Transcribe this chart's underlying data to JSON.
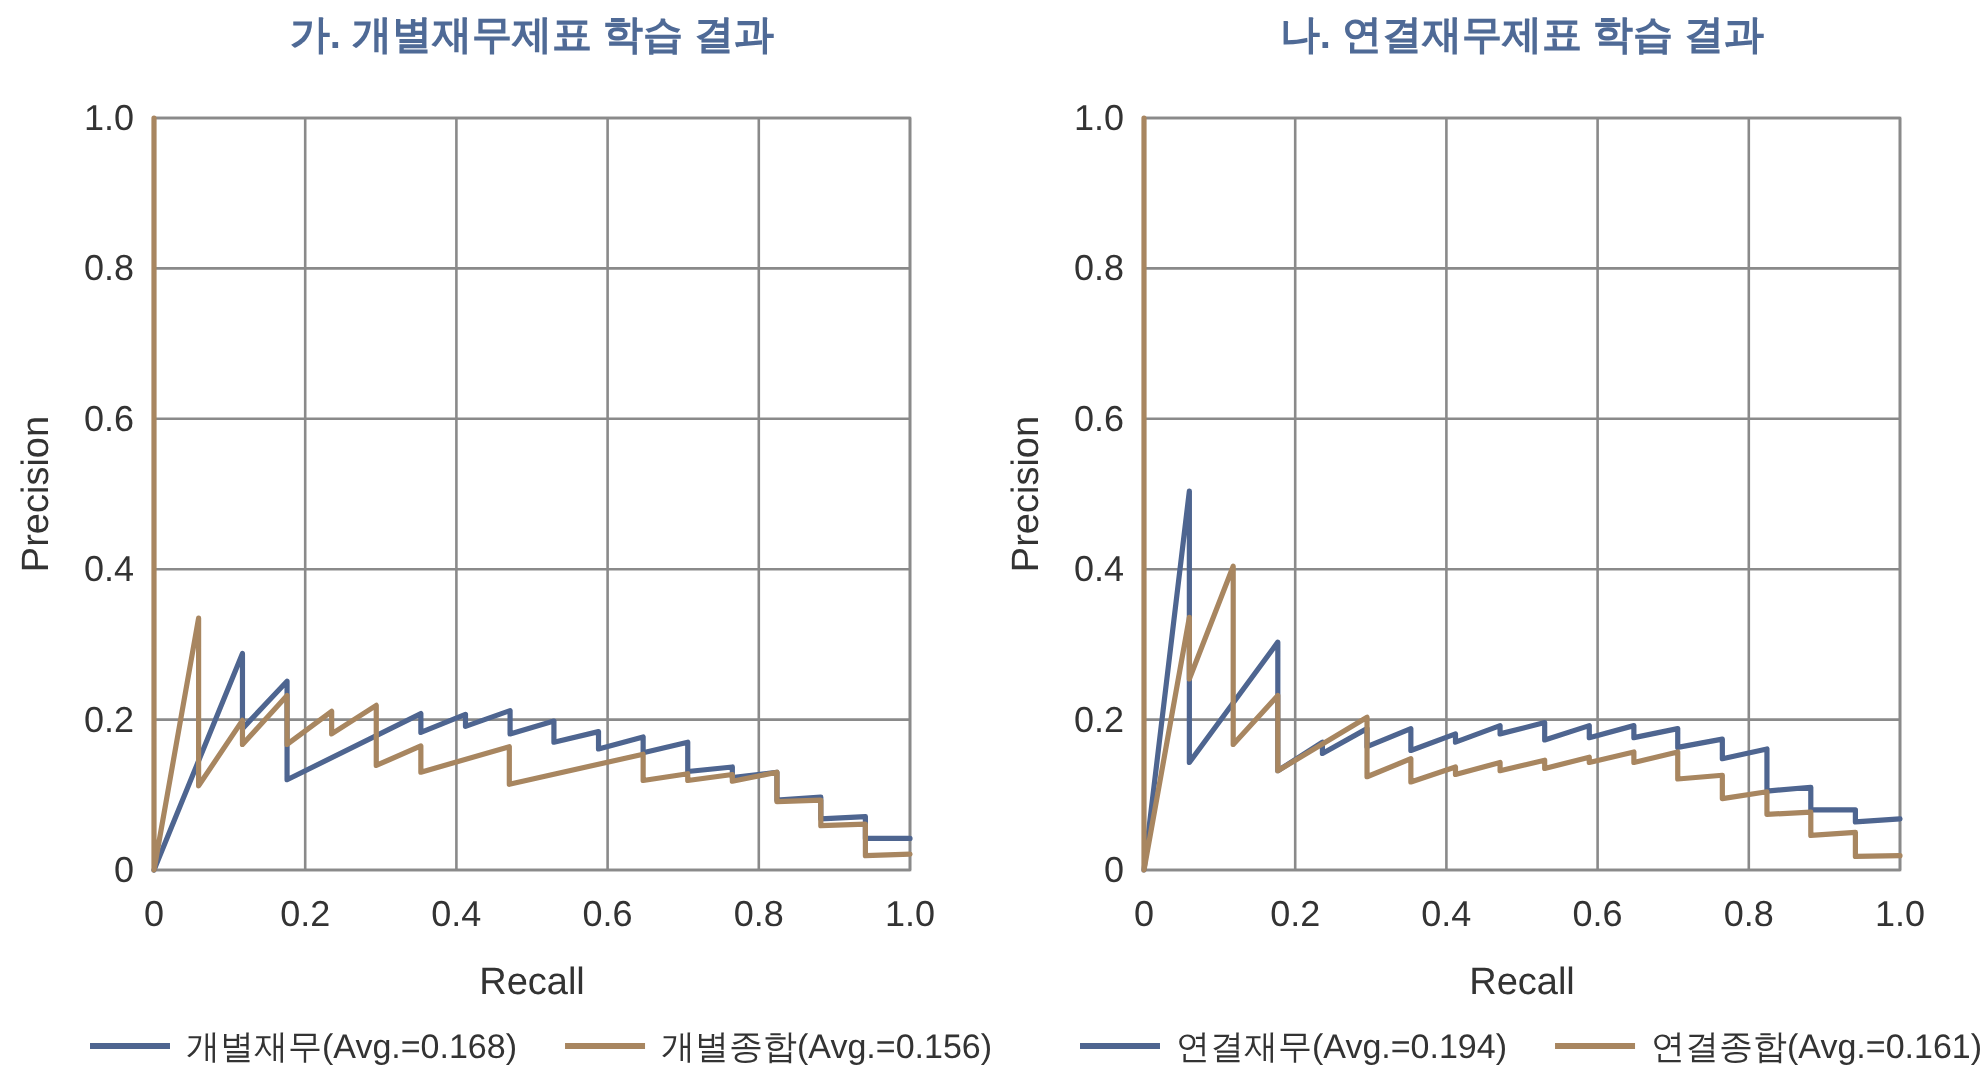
{
  "chart_data": [
    {
      "type": "line",
      "title": "가. 개별재무제표 학습 결과",
      "xlabel": "Recall",
      "ylabel": "Precision",
      "xlim": [
        0,
        1
      ],
      "ylim": [
        0,
        1
      ],
      "xticks": [
        0,
        0.2,
        0.4,
        0.6,
        0.8,
        {
          "value": 1,
          "label": "1.0"
        }
      ],
      "yticks": [
        0,
        0.2,
        0.4,
        0.6,
        0.8,
        {
          "value": 1,
          "label": "1.0"
        }
      ],
      "grid": true,
      "legend": "bottom",
      "series": [
        {
          "name": "개별재무(Avg.=0.168)",
          "color": "#4e6590",
          "x": [
            0,
            0.117,
            0.117,
            0.176,
            0.176,
            0.353,
            0.353,
            0.412,
            0.412,
            0.471,
            0.471,
            0.529,
            0.529,
            0.588,
            0.588,
            0.647,
            0.647,
            0.706,
            0.706,
            0.765,
            0.765,
            0.824,
            0.824,
            0.882,
            0.882,
            0.941,
            0.941,
            1.0
          ],
          "values": [
            0,
            0.288,
            0.188,
            0.251,
            0.12,
            0.208,
            0.183,
            0.207,
            0.191,
            0.212,
            0.181,
            0.198,
            0.17,
            0.184,
            0.161,
            0.177,
            0.156,
            0.17,
            0.131,
            0.137,
            0.123,
            0.13,
            0.093,
            0.097,
            0.068,
            0.071,
            0.042,
            0.042
          ]
        },
        {
          "name": "개별종합(Avg.=0.156)",
          "color": "#a88660",
          "x": [
            0,
            0,
            0.059,
            0.059,
            0.117,
            0.117,
            0.176,
            0.176,
            0.235,
            0.235,
            0.294,
            0.294,
            0.353,
            0.353,
            0.47,
            0.47,
            0.647,
            0.647,
            0.706,
            0.706,
            0.765,
            0.765,
            0.824,
            0.824,
            0.882,
            0.882,
            0.941,
            0.941,
            1.0
          ],
          "values": [
            1,
            0,
            0.335,
            0.112,
            0.199,
            0.167,
            0.232,
            0.167,
            0.211,
            0.181,
            0.219,
            0.139,
            0.165,
            0.13,
            0.164,
            0.114,
            0.154,
            0.119,
            0.128,
            0.119,
            0.127,
            0.118,
            0.13,
            0.091,
            0.093,
            0.059,
            0.061,
            0.019,
            0.021
          ]
        }
      ]
    },
    {
      "type": "line",
      "title": "나. 연결재무제표 학습 결과",
      "xlabel": "Recall",
      "ylabel": "Precision",
      "xlim": [
        0,
        1
      ],
      "ylim": [
        0,
        1
      ],
      "xticks": [
        0,
        0.2,
        0.4,
        0.6,
        0.8,
        {
          "value": 1,
          "label": "1.0"
        }
      ],
      "yticks": [
        0,
        0.2,
        0.4,
        0.6,
        0.8,
        {
          "value": 1,
          "label": "1.0"
        }
      ],
      "grid": true,
      "legend": "bottom",
      "series": [
        {
          "name": "연결재무(Avg.=0.194)",
          "color": "#4e6590",
          "x": [
            0,
            0.06,
            0.06,
            0.177,
            0.177,
            0.236,
            0.236,
            0.295,
            0.295,
            0.353,
            0.353,
            0.412,
            0.412,
            0.471,
            0.471,
            0.53,
            0.53,
            0.589,
            0.589,
            0.648,
            0.648,
            0.706,
            0.706,
            0.765,
            0.765,
            0.824,
            0.824,
            0.882,
            0.882,
            0.941,
            0.941,
            1.0
          ],
          "values": [
            0,
            0.504,
            0.143,
            0.303,
            0.132,
            0.17,
            0.155,
            0.188,
            0.164,
            0.188,
            0.159,
            0.181,
            0.17,
            0.192,
            0.181,
            0.196,
            0.173,
            0.192,
            0.176,
            0.192,
            0.176,
            0.188,
            0.163,
            0.174,
            0.148,
            0.161,
            0.105,
            0.11,
            0.08,
            0.08,
            0.064,
            0.068
          ]
        },
        {
          "name": "연결종합(Avg.=0.161)",
          "color": "#a88660",
          "x": [
            0,
            0,
            0.06,
            0.06,
            0.118,
            0.118,
            0.177,
            0.177,
            0.295,
            0.295,
            0.353,
            0.353,
            0.412,
            0.412,
            0.471,
            0.471,
            0.53,
            0.53,
            0.589,
            0.589,
            0.648,
            0.648,
            0.706,
            0.706,
            0.765,
            0.765,
            0.824,
            0.824,
            0.882,
            0.882,
            0.941,
            0.941,
            1.0
          ],
          "values": [
            1,
            0,
            0.336,
            0.254,
            0.404,
            0.167,
            0.232,
            0.132,
            0.203,
            0.124,
            0.148,
            0.117,
            0.137,
            0.127,
            0.143,
            0.132,
            0.146,
            0.135,
            0.15,
            0.143,
            0.157,
            0.143,
            0.157,
            0.121,
            0.126,
            0.095,
            0.104,
            0.074,
            0.077,
            0.046,
            0.05,
            0.018,
            0.019
          ]
        }
      ]
    }
  ]
}
